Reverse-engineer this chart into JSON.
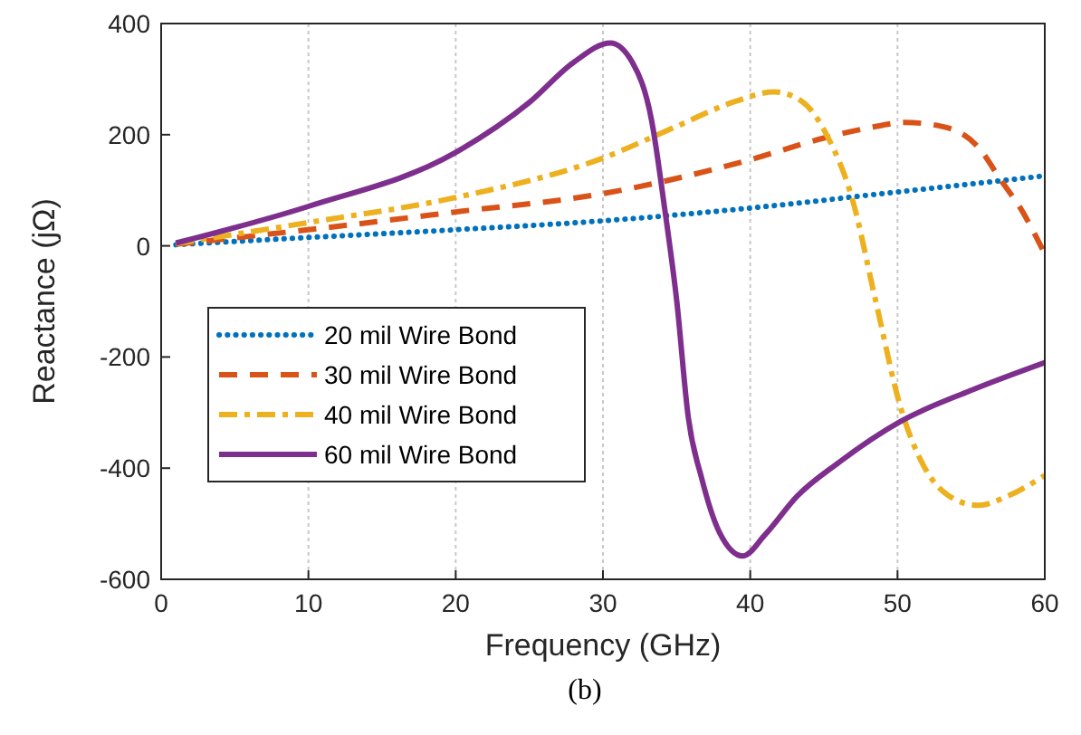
{
  "chart_data": {
    "type": "line",
    "xlabel": "Frequency (GHz)",
    "ylabel": "Reactance (jΩ)",
    "annotations": [
      "(b)"
    ],
    "xlim": [
      0,
      60
    ],
    "ylim": [
      -600,
      400
    ],
    "xticks": [
      0,
      10,
      20,
      30,
      40,
      50,
      60
    ],
    "yticks": [
      -600,
      -400,
      -200,
      0,
      200,
      400
    ],
    "grid": "x",
    "legend": "center left",
    "series": [
      {
        "name": "20 mil Wire Bond",
        "color": "#0072bd",
        "line_style": "dotted",
        "x": [
          1,
          10,
          20,
          30,
          40,
          50,
          60
        ],
        "values": [
          2,
          15,
          29,
          45,
          68,
          97,
          126
        ]
      },
      {
        "name": "30 mil Wire Bond",
        "color": "#d95319",
        "line_style": "dashed",
        "x": [
          1,
          10,
          20,
          30,
          40,
          45,
          48,
          50.5,
          53,
          55.5,
          57,
          58.5,
          60
        ],
        "values": [
          3,
          29,
          61,
          94,
          155,
          194,
          212,
          222,
          215,
          177,
          119,
          61,
          -15
        ]
      },
      {
        "name": "40 mil Wire Bond",
        "color": "#edb120",
        "line_style": "dashdot",
        "x": [
          1,
          10,
          20,
          30,
          35,
          39,
          41.6,
          43.5,
          45.3,
          46.9,
          48.5,
          50.2,
          51.8,
          53.5,
          55.5,
          57.5,
          60
        ],
        "values": [
          4,
          42,
          87,
          158,
          215,
          260,
          277,
          260,
          194,
          87,
          -97,
          -290,
          -397,
          -450,
          -467,
          -450,
          -413
        ]
      },
      {
        "name": "60 mil Wire Bond",
        "color": "#7e2f8e",
        "line_style": "solid",
        "x": [
          1,
          10,
          20,
          25,
          28,
          30.5,
          32,
          33.3,
          34.2,
          35,
          35.8,
          36.7,
          37.9,
          39.5,
          41,
          43.2,
          46,
          50.2,
          55,
          60
        ],
        "values": [
          5,
          71,
          168,
          258,
          330,
          365,
          330,
          226,
          65,
          -97,
          -310,
          -418,
          -515,
          -558,
          -520,
          -450,
          -390,
          -316,
          -260,
          -210
        ]
      }
    ]
  }
}
